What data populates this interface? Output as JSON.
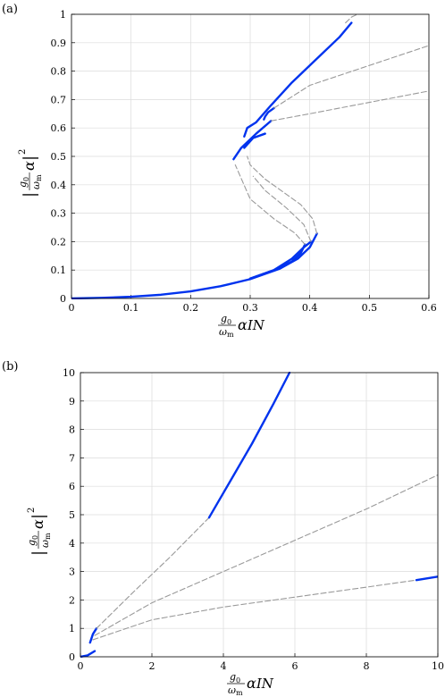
{
  "colors": {
    "stable": "#0033ee",
    "unstable": "#999999",
    "grid": "#dcdcdc"
  },
  "chart_data": [
    {
      "type": "line",
      "panel_label": "(a)",
      "xlim": [
        0,
        0.6
      ],
      "ylim": [
        0,
        1
      ],
      "xticks": [
        "0",
        "0.1",
        "0.2",
        "0.3",
        "0.4",
        "0.5",
        "0.6"
      ],
      "yticks": [
        "0",
        "0.1",
        "0.2",
        "0.3",
        "0.4",
        "0.5",
        "0.6",
        "0.7",
        "0.8",
        "0.9",
        "1"
      ],
      "xlabel": {
        "frac_num": "g",
        "frac_num_sub": "0",
        "frac_den": "ω",
        "frac_den_sub": "m",
        "symbol": "α",
        "tail": "IN"
      },
      "ylabel": {
        "frac_num": "g",
        "frac_num_sub": "0",
        "frac_den": "ω",
        "frac_den_sub": "m",
        "symbol": "α",
        "power": "2"
      },
      "grid": true,
      "series": [
        {
          "style": "stable",
          "x": [
            0,
            0.05,
            0.1,
            0.15,
            0.2,
            0.25,
            0.3,
            0.35,
            0.38,
            0.4,
            0.412
          ],
          "y": [
            0,
            0.002,
            0.006,
            0.013,
            0.025,
            0.043,
            0.068,
            0.105,
            0.14,
            0.18,
            0.228
          ]
        },
        {
          "style": "unstable",
          "x": [
            0.412,
            0.405,
            0.385,
            0.355,
            0.325,
            0.3,
            0.295
          ],
          "y": [
            0.228,
            0.28,
            0.33,
            0.375,
            0.42,
            0.47,
            0.5
          ]
        },
        {
          "style": "stable",
          "x": [
            0.29,
            0.295,
            0.31,
            0.335,
            0.37,
            0.41,
            0.45,
            0.47
          ],
          "y": [
            0.57,
            0.6,
            0.62,
            0.68,
            0.76,
            0.84,
            0.92,
            0.97
          ]
        },
        {
          "style": "unstable",
          "x": [
            0.46,
            0.47,
            0.48
          ],
          "y": [
            0.97,
            0.99,
            1.0
          ]
        },
        {
          "style": "stable",
          "x": [
            0.3,
            0.34,
            0.37,
            0.39,
            0.402
          ],
          "y": [
            0.07,
            0.1,
            0.14,
            0.18,
            0.2
          ]
        },
        {
          "style": "unstable",
          "x": [
            0.402,
            0.39,
            0.36,
            0.325,
            0.305
          ],
          "y": [
            0.2,
            0.26,
            0.32,
            0.38,
            0.43
          ]
        },
        {
          "style": "stable",
          "x": [
            0.29,
            0.305,
            0.325
          ],
          "y": [
            0.53,
            0.565,
            0.58
          ]
        },
        {
          "style": "stable",
          "x": [
            0.323,
            0.325,
            0.33,
            0.34
          ],
          "y": [
            0.63,
            0.64,
            0.655,
            0.67
          ]
        },
        {
          "style": "unstable",
          "x": [
            0.34,
            0.4,
            0.5,
            0.6
          ],
          "y": [
            0.67,
            0.75,
            0.82,
            0.89
          ]
        },
        {
          "style": "stable",
          "x": [
            0.3,
            0.34,
            0.37,
            0.385,
            0.392
          ],
          "y": [
            0.07,
            0.1,
            0.13,
            0.16,
            0.19
          ]
        },
        {
          "style": "unstable",
          "x": [
            0.392,
            0.375,
            0.34,
            0.3,
            0.275
          ],
          "y": [
            0.19,
            0.23,
            0.28,
            0.35,
            0.47
          ]
        },
        {
          "style": "stable",
          "x": [
            0.272,
            0.285,
            0.31,
            0.335
          ],
          "y": [
            0.49,
            0.53,
            0.58,
            0.625
          ]
        },
        {
          "style": "unstable",
          "x": [
            0.335,
            0.4,
            0.5,
            0.6
          ],
          "y": [
            0.625,
            0.65,
            0.69,
            0.73
          ]
        }
      ]
    },
    {
      "type": "line",
      "panel_label": "(b)",
      "xlim": [
        0,
        10
      ],
      "ylim": [
        0,
        10
      ],
      "xticks": [
        "0",
        "2",
        "4",
        "6",
        "8",
        "10"
      ],
      "yticks": [
        "0",
        "1",
        "2",
        "3",
        "4",
        "5",
        "6",
        "7",
        "8",
        "9",
        "10"
      ],
      "xlabel": {
        "frac_num": "g",
        "frac_num_sub": "0",
        "frac_den": "ω",
        "frac_den_sub": "m",
        "symbol": "α",
        "tail": "IN"
      },
      "ylabel": {
        "frac_num": "g",
        "frac_num_sub": "0",
        "frac_den": "ω",
        "frac_den_sub": "m",
        "symbol": "α",
        "power": "2"
      },
      "grid": true,
      "series": [
        {
          "style": "stable",
          "x": [
            0,
            0.2,
            0.4
          ],
          "y": [
            0,
            0.05,
            0.2
          ]
        },
        {
          "style": "stable",
          "x": [
            0.27,
            0.35,
            0.45
          ],
          "y": [
            0.5,
            0.8,
            1.0
          ]
        },
        {
          "style": "unstable",
          "x": [
            0.45,
            1.5,
            2.5,
            3.6
          ],
          "y": [
            1.0,
            2.3,
            3.5,
            4.9
          ]
        },
        {
          "style": "stable",
          "x": [
            3.6,
            4.2,
            4.8,
            5.4,
            5.85
          ],
          "y": [
            4.9,
            6.2,
            7.5,
            8.9,
            10.0
          ]
        },
        {
          "style": "unstable",
          "x": [
            0.4,
            2,
            4,
            6,
            8,
            10
          ],
          "y": [
            0.75,
            1.9,
            3.0,
            4.1,
            5.2,
            6.4
          ]
        },
        {
          "style": "unstable",
          "x": [
            0.35,
            2,
            4,
            6,
            8,
            9.4
          ],
          "y": [
            0.6,
            1.3,
            1.75,
            2.1,
            2.45,
            2.7
          ]
        },
        {
          "style": "stable",
          "x": [
            9.4,
            10
          ],
          "y": [
            2.7,
            2.82
          ]
        }
      ]
    }
  ]
}
